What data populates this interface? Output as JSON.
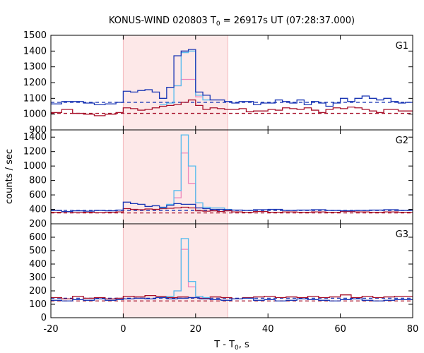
{
  "chart_data": {
    "type": "line",
    "title": {
      "prefix": "KONUS-WIND 020803 T",
      "sub": "0",
      "suffix": " = 26917s UT (07:28:37.000)"
    },
    "xlabel": {
      "prefix": "T - T",
      "sub": "0",
      "suffix": ", s"
    },
    "ylabel": "counts / sec",
    "xlim": [
      -20,
      80
    ],
    "x_ticks": [
      -20,
      0,
      20,
      40,
      60,
      80
    ],
    "highlight_interval": [
      0,
      28.9
    ],
    "colors": {
      "highlight": "#fde8e8",
      "dark_blue": "#1a36b4",
      "light_blue": "#55bbee",
      "dark_red": "#a8102a",
      "pink": "#ee88bb"
    },
    "panels": [
      {
        "label": "G1",
        "ylim": [
          900,
          1500
        ],
        "y_ticks": [
          900,
          1000,
          1100,
          1200,
          1300,
          1400,
          1500
        ],
        "background": [
          {
            "name": "",
            "color": "dark_blue",
            "level": 1075
          },
          {
            "name": "",
            "color": "dark_red",
            "level": 1005
          }
        ],
        "series": [
          {
            "name": "",
            "color": "dark_red",
            "kind": "step",
            "x": [
              -20,
              -17,
              -14,
              -11,
              -8,
              -5,
              -2,
              0,
              2,
              4,
              6,
              8,
              10,
              12,
              14,
              16,
              18,
              20,
              22,
              24,
              26,
              28,
              30,
              32,
              34,
              36,
              38,
              40,
              42,
              44,
              46,
              48,
              50,
              52,
              54,
              56,
              58,
              60,
              62,
              64,
              66,
              68,
              70,
              72,
              74,
              76,
              78,
              80
            ],
            "y": [
              1010,
              1030,
              1005,
              1000,
              990,
              1000,
              1010,
              1040,
              1035,
              1025,
              1030,
              1040,
              1050,
              1055,
              1060,
              1075,
              1090,
              1055,
              1030,
              1040,
              1035,
              1030,
              1030,
              1035,
              1015,
              1020,
              1020,
              1030,
              1025,
              1040,
              1035,
              1030,
              1040,
              1025,
              1010,
              1030,
              1040,
              1035,
              1045,
              1040,
              1030,
              1020,
              1010,
              1030,
              1030,
              1020,
              1020
            ]
          },
          {
            "name": "",
            "color": "pink",
            "kind": "step",
            "x": [
              14,
              16,
              18,
              20,
              22
            ],
            "y": [
              1180,
              1220,
              1220,
              1110
            ]
          },
          {
            "name": "",
            "color": "light_blue",
            "kind": "step",
            "x": [
              10,
              12,
              14,
              16,
              18,
              20,
              22,
              24
            ],
            "y": [
              1060,
              1070,
              1180,
              1390,
              1400,
              1120,
              1090
            ]
          },
          {
            "name": "",
            "color": "dark_blue",
            "kind": "step",
            "x": [
              -20,
              -17,
              -14,
              -11,
              -8,
              -5,
              -2,
              0,
              2,
              4,
              6,
              8,
              10,
              12,
              14,
              16,
              18,
              20,
              22,
              24,
              26,
              28,
              30,
              32,
              34,
              36,
              38,
              40,
              42,
              44,
              46,
              48,
              50,
              52,
              54,
              56,
              58,
              60,
              62,
              64,
              66,
              68,
              70,
              72,
              74,
              76,
              78,
              80
            ],
            "y": [
              1065,
              1080,
              1080,
              1070,
              1060,
              1065,
              1075,
              1145,
              1140,
              1150,
              1155,
              1140,
              1100,
              1170,
              1370,
              1400,
              1410,
              1140,
              1120,
              1090,
              1090,
              1080,
              1070,
              1080,
              1080,
              1060,
              1070,
              1070,
              1090,
              1080,
              1070,
              1090,
              1060,
              1080,
              1070,
              1050,
              1070,
              1100,
              1080,
              1100,
              1115,
              1100,
              1090,
              1100,
              1080,
              1070,
              1075
            ]
          }
        ]
      },
      {
        "label": "G2",
        "ylim": [
          200,
          1500
        ],
        "y_ticks": [
          200,
          400,
          600,
          800,
          1000,
          1200,
          1400
        ],
        "background": [
          {
            "name": "",
            "color": "dark_blue",
            "level": 385
          },
          {
            "name": "",
            "color": "dark_red",
            "level": 350
          }
        ],
        "series": [
          {
            "name": "",
            "color": "dark_red",
            "kind": "step",
            "x": [
              -20,
              -17,
              -14,
              -11,
              -8,
              -5,
              -2,
              0,
              2,
              4,
              6,
              8,
              10,
              12,
              14,
              16,
              18,
              20,
              22,
              24,
              26,
              28,
              30,
              33,
              36,
              40,
              44,
              48,
              52,
              56,
              60,
              64,
              68,
              72,
              76,
              80
            ],
            "y": [
              360,
              365,
              355,
              360,
              355,
              360,
              365,
              410,
              400,
              395,
              405,
              400,
              410,
              415,
              420,
              430,
              420,
              380,
              375,
              380,
              370,
              380,
              365,
              360,
              370,
              360,
              365,
              360,
              365,
              360,
              370,
              365,
              360,
              365,
              360
            ]
          },
          {
            "name": "",
            "color": "pink",
            "kind": "step",
            "x": [
              14,
              16,
              18,
              20,
              22
            ],
            "y": [
              560,
              1180,
              760,
              420
            ]
          },
          {
            "name": "",
            "color": "light_blue",
            "kind": "step",
            "x": [
              10,
              12,
              14,
              16,
              18,
              20,
              22,
              24,
              26,
              28,
              30
            ],
            "y": [
              420,
              470,
              660,
              1430,
              1000,
              490,
              430,
              420,
              420,
              400
            ]
          },
          {
            "name": "",
            "color": "dark_blue",
            "kind": "step",
            "x": [
              -20,
              -17,
              -14,
              -11,
              -8,
              -5,
              -2,
              0,
              2,
              4,
              6,
              8,
              10,
              12,
              14,
              16,
              18,
              20,
              22,
              24,
              26,
              28,
              30,
              33,
              36,
              40,
              44,
              48,
              52,
              56,
              60,
              64,
              68,
              72,
              76,
              80
            ],
            "y": [
              385,
              370,
              380,
              375,
              385,
              380,
              390,
              500,
              480,
              470,
              440,
              450,
              430,
              455,
              480,
              470,
              470,
              420,
              410,
              400,
              400,
              395,
              390,
              385,
              395,
              400,
              385,
              390,
              395,
              385,
              380,
              385,
              390,
              395,
              385
            ]
          }
        ]
      },
      {
        "label": "G3",
        "ylim": [
          0,
          700
        ],
        "y_ticks": [
          0,
          100,
          200,
          300,
          400,
          500,
          600
        ],
        "background": [
          {
            "name": "",
            "color": "dark_blue",
            "level": 145
          },
          {
            "name": "",
            "color": "dark_red",
            "level": 125
          }
        ],
        "series": [
          {
            "name": "",
            "color": "dark_red",
            "kind": "step",
            "x": [
              -20,
              -17,
              -14,
              -11,
              -8,
              -5,
              -2,
              0,
              3,
              6,
              9,
              12,
              15,
              18,
              21,
              24,
              27,
              30,
              33,
              36,
              39,
              42,
              45,
              48,
              51,
              54,
              57,
              60,
              63,
              66,
              69,
              72,
              75,
              80
            ],
            "y": [
              150,
              140,
              160,
              145,
              150,
              140,
              145,
              160,
              155,
              165,
              160,
              150,
              155,
              150,
              145,
              155,
              150,
              140,
              150,
              155,
              160,
              150,
              155,
              150,
              160,
              150,
              155,
              170,
              150,
              160,
              150,
              155,
              160
            ]
          },
          {
            "name": "",
            "color": "pink",
            "kind": "step",
            "x": [
              14,
              16,
              18,
              20,
              22
            ],
            "y": [
              200,
              510,
              230,
              150
            ]
          },
          {
            "name": "",
            "color": "light_blue",
            "kind": "step",
            "x": [
              10,
              12,
              14,
              16,
              18,
              20,
              22,
              24
            ],
            "y": [
              150,
              160,
              200,
              590,
              270,
              160,
              150
            ]
          },
          {
            "name": "",
            "color": "dark_blue",
            "kind": "step",
            "x": [
              -20,
              -17,
              -14,
              -11,
              -8,
              -5,
              -2,
              0,
              3,
              6,
              9,
              12,
              15,
              18,
              21,
              24,
              27,
              30,
              33,
              36,
              39,
              42,
              45,
              48,
              51,
              54,
              57,
              60,
              63,
              66,
              69,
              72,
              75,
              80
            ],
            "y": [
              130,
              125,
              135,
              130,
              140,
              130,
              135,
              140,
              145,
              140,
              150,
              140,
              145,
              150,
              140,
              135,
              130,
              140,
              145,
              130,
              135,
              125,
              130,
              140,
              135,
              130,
              125,
              135,
              140,
              130,
              125,
              130,
              135
            ]
          }
        ]
      }
    ]
  }
}
